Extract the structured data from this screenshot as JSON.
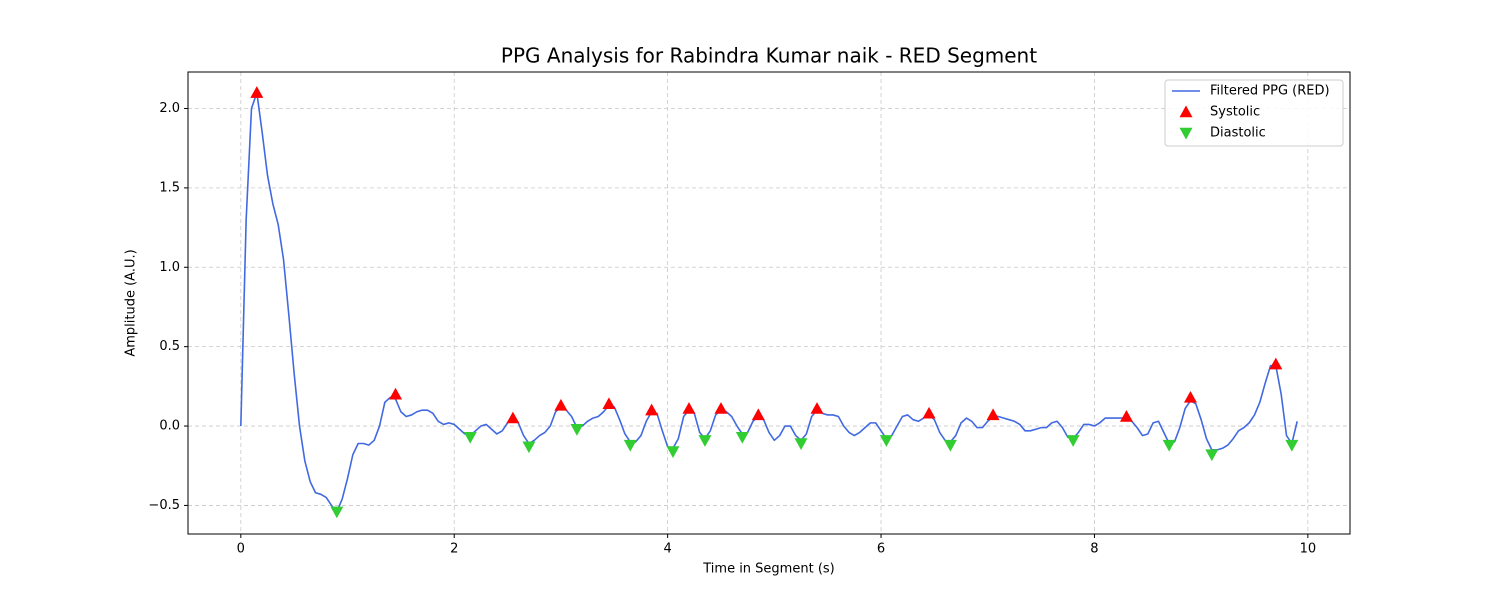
{
  "chart_data": {
    "type": "line",
    "title": "PPG Analysis for Rabindra Kumar naik - RED Segment",
    "xlabel": "Time in Segment (s)",
    "ylabel": "Amplitude (A.U.)",
    "xlim": [
      -0.495,
      10.395
    ],
    "ylim": [
      -0.68,
      2.23
    ],
    "xticks": [
      0,
      2,
      4,
      6,
      8,
      10
    ],
    "yticks": [
      {
        "value": -0.5,
        "label": "−0.5"
      },
      {
        "value": 0,
        "label": "0.0"
      },
      0.5,
      {
        "value": 1,
        "label": "1.0"
      },
      1.5,
      {
        "value": 2,
        "label": "2.0"
      }
    ],
    "grid": true,
    "legend": "upper right",
    "series": [
      {
        "name": "Filtered PPG (RED)",
        "color": "#4169e1",
        "marker": "none",
        "x": [
          0,
          0.05,
          0.1,
          0.15,
          0.2,
          0.25,
          0.3,
          0.35,
          0.4,
          0.45,
          0.5,
          0.55,
          0.6,
          0.65,
          0.7,
          0.75,
          0.8,
          0.85,
          0.9,
          0.95,
          1,
          1.05,
          1.1,
          1.15,
          1.2,
          1.25,
          1.3,
          1.35,
          1.4,
          1.45,
          1.5,
          1.55,
          1.6,
          1.65,
          1.7,
          1.75,
          1.8,
          1.85,
          1.9,
          1.95,
          2,
          2.05,
          2.1,
          2.15,
          2.2,
          2.25,
          2.3,
          2.35,
          2.4,
          2.45,
          2.5,
          2.55,
          2.6,
          2.65,
          2.7,
          2.75,
          2.8,
          2.85,
          2.9,
          2.95,
          3,
          3.05,
          3.1,
          3.15,
          3.2,
          3.25,
          3.3,
          3.35,
          3.4,
          3.45,
          3.5,
          3.55,
          3.6,
          3.65,
          3.7,
          3.75,
          3.8,
          3.85,
          3.9,
          3.95,
          4,
          4.05,
          4.1,
          4.15,
          4.2,
          4.25,
          4.3,
          4.35,
          4.4,
          4.45,
          4.5,
          4.55,
          4.6,
          4.65,
          4.7,
          4.75,
          4.8,
          4.85,
          4.9,
          4.95,
          5,
          5.05,
          5.1,
          5.15,
          5.2,
          5.25,
          5.3,
          5.35,
          5.4,
          5.45,
          5.5,
          5.55,
          5.6,
          5.65,
          5.7,
          5.75,
          5.8,
          5.85,
          5.9,
          5.95,
          6,
          6.05,
          6.1,
          6.15,
          6.2,
          6.25,
          6.3,
          6.35,
          6.4,
          6.45,
          6.5,
          6.55,
          6.6,
          6.65,
          6.7,
          6.75,
          6.8,
          6.85,
          6.9,
          6.95,
          7,
          7.05,
          7.1,
          7.15,
          7.2,
          7.25,
          7.3,
          7.35,
          7.4,
          7.45,
          7.5,
          7.55,
          7.6,
          7.65,
          7.7,
          7.75,
          7.8,
          7.85,
          7.9,
          7.95,
          8,
          8.05,
          8.1,
          8.15,
          8.2,
          8.25,
          8.3,
          8.35,
          8.4,
          8.45,
          8.5,
          8.55,
          8.6,
          8.65,
          8.7,
          8.75,
          8.8,
          8.85,
          8.9,
          8.95,
          9,
          9.05,
          9.1,
          9.15,
          9.2,
          9.25,
          9.3,
          9.35,
          9.4,
          9.45,
          9.5,
          9.55,
          9.6,
          9.65,
          9.7,
          9.75,
          9.8,
          9.85,
          9.9
        ],
        "values": [
          0,
          1.3,
          2.0,
          2.1,
          1.85,
          1.58,
          1.4,
          1.27,
          1.05,
          0.7,
          0.33,
          0.0,
          -0.22,
          -0.35,
          -0.42,
          -0.43,
          -0.45,
          -0.5,
          -0.54,
          -0.46,
          -0.33,
          -0.18,
          -0.11,
          -0.11,
          -0.12,
          -0.09,
          0.0,
          0.15,
          0.18,
          0.17,
          0.09,
          0.06,
          0.07,
          0.09,
          0.1,
          0.1,
          0.08,
          0.03,
          0.01,
          0.02,
          0.01,
          -0.02,
          -0.05,
          -0.06,
          -0.03,
          0.0,
          0.01,
          -0.02,
          -0.05,
          -0.03,
          0.02,
          0.05,
          0.02,
          -0.06,
          -0.11,
          -0.09,
          -0.06,
          -0.04,
          0.0,
          0.09,
          0.12,
          0.1,
          0.06,
          -0.01,
          0.0,
          0.03,
          0.05,
          0.06,
          0.09,
          0.13,
          0.12,
          0.04,
          -0.05,
          -0.1,
          -0.1,
          -0.06,
          0.03,
          0.09,
          0.08,
          -0.03,
          -0.13,
          -0.14,
          -0.08,
          0.06,
          0.1,
          0.08,
          -0.04,
          -0.08,
          -0.03,
          0.07,
          0.1,
          0.09,
          0.06,
          0.0,
          -0.05,
          -0.04,
          0.03,
          0.06,
          0.04,
          -0.04,
          -0.09,
          -0.06,
          0.0,
          0.0,
          -0.06,
          -0.09,
          -0.05,
          0.06,
          0.1,
          0.08,
          0.07,
          0.07,
          0.06,
          0.0,
          -0.04,
          -0.06,
          -0.04,
          -0.01,
          0.02,
          0.02,
          -0.03,
          -0.08,
          -0.06,
          0.0,
          0.06,
          0.07,
          0.04,
          0.03,
          0.05,
          0.07,
          0.04,
          -0.04,
          -0.09,
          -0.1,
          -0.06,
          0.02,
          0.05,
          0.03,
          -0.01,
          -0.01,
          0.03,
          0.06,
          0.06,
          0.05,
          0.04,
          0.03,
          0.01,
          -0.03,
          -0.03,
          -0.02,
          -0.01,
          -0.01,
          0.02,
          0.03,
          -0.01,
          -0.07,
          -0.08,
          -0.04,
          0.01,
          0.01,
          0.0,
          0.02,
          0.05,
          0.05,
          0.05,
          0.05,
          0.05,
          0.03,
          -0.01,
          -0.06,
          -0.05,
          0.02,
          0.03,
          -0.04,
          -0.11,
          -0.1,
          -0.01,
          0.11,
          0.16,
          0.14,
          0.04,
          -0.08,
          -0.15,
          -0.15,
          -0.14,
          -0.12,
          -0.08,
          -0.03,
          -0.01,
          0.02,
          0.07,
          0.15,
          0.27,
          0.38,
          0.38,
          0.2,
          -0.06,
          -0.11,
          0.03
        ]
      },
      {
        "name": "Systolic",
        "color": "#ff0000",
        "marker": "triangle-up",
        "x": [
          0.15,
          1.45,
          2.55,
          3.0,
          3.45,
          3.85,
          4.2,
          4.5,
          4.85,
          5.4,
          6.45,
          7.05,
          8.3,
          8.9,
          9.7
        ],
        "values": [
          2.1,
          0.2,
          0.05,
          0.13,
          0.14,
          0.1,
          0.11,
          0.11,
          0.07,
          0.11,
          0.08,
          0.07,
          0.06,
          0.18,
          0.39
        ]
      },
      {
        "name": "Diastolic",
        "color": "#32cd32",
        "marker": "triangle-down",
        "x": [
          0.9,
          2.15,
          2.7,
          3.15,
          3.65,
          4.05,
          4.35,
          4.7,
          5.25,
          6.05,
          6.65,
          7.8,
          8.7,
          9.1,
          9.85
        ],
        "values": [
          -0.54,
          -0.07,
          -0.13,
          -0.02,
          -0.12,
          -0.16,
          -0.09,
          -0.07,
          -0.11,
          -0.09,
          -0.12,
          -0.09,
          -0.12,
          -0.18,
          -0.12
        ]
      }
    ]
  }
}
